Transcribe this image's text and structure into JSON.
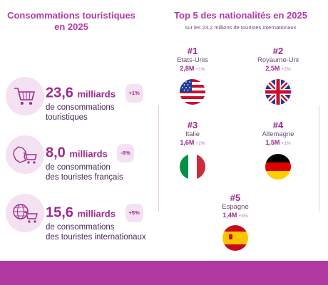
{
  "left": {
    "title_line1": "Consommations touristiques",
    "title_line2": "en 2025",
    "stats": [
      {
        "value": "23,6",
        "unit": "milliards",
        "badge": "+1%",
        "desc1": "de consommations",
        "desc2": "touristiques",
        "icon": "shopping-cart-icon"
      },
      {
        "value": "8,0",
        "unit": "milliards",
        "badge": "-6%",
        "desc1": "de consommation",
        "desc2": "des touristes français",
        "icon": "france-cart-icon"
      },
      {
        "value": "15,6",
        "unit": "milliards",
        "badge": "+5%",
        "desc1": "de consommations",
        "desc2": "des touristes internationaux",
        "icon": "globe-cart-icon"
      }
    ]
  },
  "right": {
    "title": "Top 5 des nationalités en 2025",
    "subtitle": "sur les 23,2 millions de touristes internationaux",
    "nations": [
      {
        "rank": "#1",
        "country": "Etats-Unis",
        "count": "2,8M",
        "var": "+1%",
        "flag": "usa-flag-icon"
      },
      {
        "rank": "#2",
        "country": "Royaume-Uni",
        "count": "2,5M",
        "var": "+2%",
        "flag": "uk-flag-icon"
      },
      {
        "rank": "#3",
        "country": "Italie",
        "count": "1,6M",
        "var": "+2%",
        "flag": "italy-flag-icon"
      },
      {
        "rank": "#4",
        "country": "Allemagne",
        "count": "1,5M",
        "var": "+1%",
        "flag": "germany-flag-icon"
      },
      {
        "rank": "#5",
        "country": "Espagne",
        "count": "1,4M",
        "var": "+3%",
        "flag": "spain-flag-icon"
      }
    ]
  },
  "colors": {
    "accent": "#b0399f",
    "soft": "#f4e1f1",
    "text": "#4a2a5a"
  }
}
